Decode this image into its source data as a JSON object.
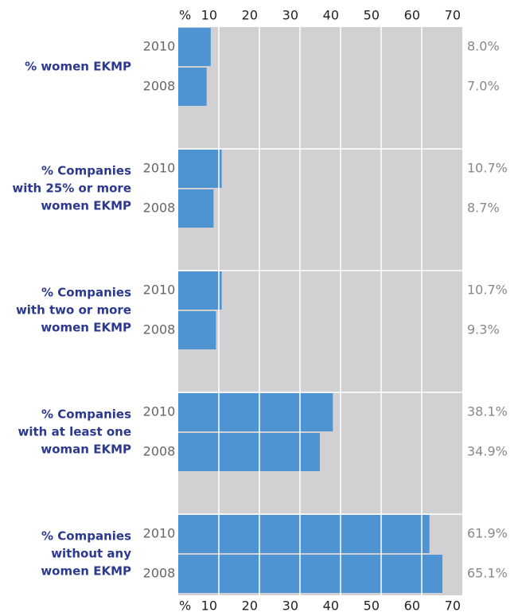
{
  "chart_data": {
    "type": "bar",
    "categories": [
      [
        "% women EKMP"
      ],
      [
        "% Companies",
        "with 25% or more",
        "women EKMP"
      ],
      [
        "% Companies",
        "with two or more",
        "women EKMP"
      ],
      [
        "% Companies",
        "with at least one",
        "woman EKMP"
      ],
      [
        "% Companies",
        "without any",
        "women EKMP"
      ]
    ],
    "series": [
      {
        "name": "2010",
        "color": "#4e94d3",
        "values": [
          8.0,
          10.7,
          10.7,
          38.1,
          61.9
        ],
        "value_labels": [
          "8.0%",
          "10.7%",
          "10.7%",
          "38.1%",
          "61.9%"
        ]
      },
      {
        "name": "2008",
        "color": "#4e94d3",
        "values": [
          7.0,
          8.7,
          9.3,
          34.9,
          65.1
        ],
        "value_labels": [
          "7.0%",
          "8.7%",
          "9.3%",
          "34.9%",
          "65.1%"
        ]
      }
    ],
    "xlim": [
      0,
      70
    ],
    "xticks": [
      {
        "value": 0,
        "label": "%"
      },
      10,
      20,
      30,
      40,
      50,
      60,
      70
    ],
    "grid": true
  }
}
